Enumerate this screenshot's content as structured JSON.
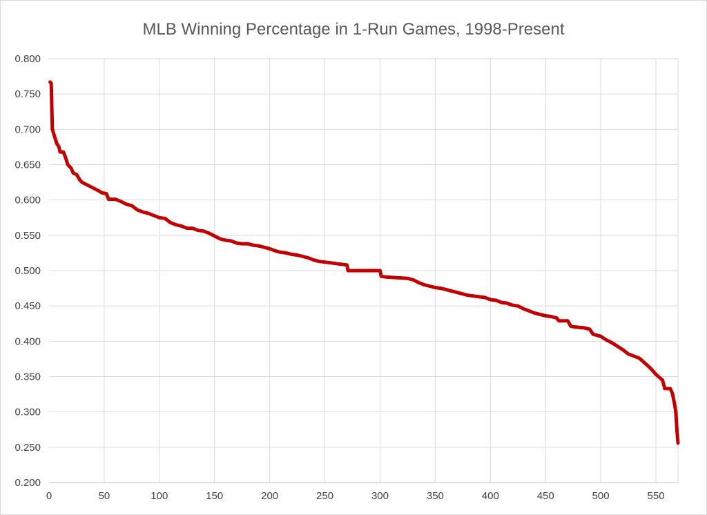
{
  "chart_data": {
    "type": "line",
    "title": "MLB Winning Percentage in 1-Run Games, 1998-Present",
    "xlabel": "",
    "ylabel": "",
    "xlim": [
      0,
      570
    ],
    "ylim": [
      0.2,
      0.8
    ],
    "x_ticks": [
      0,
      50,
      100,
      150,
      200,
      250,
      300,
      350,
      400,
      450,
      500,
      550
    ],
    "x_tick_labels": [
      "0",
      "50",
      "100",
      "150",
      "200",
      "250",
      "300",
      "350",
      "400",
      "450",
      "500",
      "550"
    ],
    "y_ticks": [
      0.2,
      0.25,
      0.3,
      0.35,
      0.4,
      0.45,
      0.5,
      0.55,
      0.6,
      0.65,
      0.7,
      0.75,
      0.8
    ],
    "y_tick_labels": [
      "0.200",
      "0.250",
      "0.300",
      "0.350",
      "0.400",
      "0.450",
      "0.500",
      "0.550",
      "0.600",
      "0.650",
      "0.700",
      "0.750",
      "0.800"
    ],
    "grid": true,
    "legend": "none",
    "series": [
      {
        "color": "#c00000",
        "points": [
          [
            1,
            0.767
          ],
          [
            2,
            0.765
          ],
          [
            3,
            0.7
          ],
          [
            5,
            0.69
          ],
          [
            7,
            0.68
          ],
          [
            9,
            0.675
          ],
          [
            10,
            0.668
          ],
          [
            13,
            0.668
          ],
          [
            15,
            0.66
          ],
          [
            17,
            0.65
          ],
          [
            20,
            0.645
          ],
          [
            22,
            0.638
          ],
          [
            25,
            0.636
          ],
          [
            28,
            0.628
          ],
          [
            30,
            0.625
          ],
          [
            35,
            0.621
          ],
          [
            40,
            0.617
          ],
          [
            45,
            0.613
          ],
          [
            48,
            0.61
          ],
          [
            52,
            0.609
          ],
          [
            54,
            0.601
          ],
          [
            60,
            0.601
          ],
          [
            65,
            0.598
          ],
          [
            70,
            0.594
          ],
          [
            75,
            0.592
          ],
          [
            80,
            0.586
          ],
          [
            85,
            0.583
          ],
          [
            90,
            0.581
          ],
          [
            95,
            0.578
          ],
          [
            100,
            0.575
          ],
          [
            105,
            0.574
          ],
          [
            110,
            0.568
          ],
          [
            115,
            0.565
          ],
          [
            120,
            0.563
          ],
          [
            125,
            0.56
          ],
          [
            130,
            0.56
          ],
          [
            135,
            0.557
          ],
          [
            140,
            0.556
          ],
          [
            145,
            0.553
          ],
          [
            150,
            0.549
          ],
          [
            155,
            0.545
          ],
          [
            160,
            0.543
          ],
          [
            165,
            0.542
          ],
          [
            170,
            0.539
          ],
          [
            175,
            0.538
          ],
          [
            180,
            0.538
          ],
          [
            185,
            0.536
          ],
          [
            190,
            0.535
          ],
          [
            195,
            0.533
          ],
          [
            200,
            0.531
          ],
          [
            205,
            0.528
          ],
          [
            210,
            0.526
          ],
          [
            215,
            0.525
          ],
          [
            220,
            0.523
          ],
          [
            225,
            0.522
          ],
          [
            230,
            0.52
          ],
          [
            235,
            0.518
          ],
          [
            240,
            0.515
          ],
          [
            245,
            0.513
          ],
          [
            250,
            0.512
          ],
          [
            255,
            0.511
          ],
          [
            260,
            0.51
          ],
          [
            265,
            0.509
          ],
          [
            270,
            0.508
          ],
          [
            271,
            0.5
          ],
          [
            280,
            0.5
          ],
          [
            290,
            0.5
          ],
          [
            300,
            0.5
          ],
          [
            301,
            0.492
          ],
          [
            305,
            0.491
          ],
          [
            315,
            0.49
          ],
          [
            325,
            0.489
          ],
          [
            330,
            0.487
          ],
          [
            335,
            0.483
          ],
          [
            340,
            0.48
          ],
          [
            345,
            0.478
          ],
          [
            350,
            0.476
          ],
          [
            355,
            0.475
          ],
          [
            360,
            0.473
          ],
          [
            365,
            0.471
          ],
          [
            370,
            0.469
          ],
          [
            375,
            0.467
          ],
          [
            380,
            0.465
          ],
          [
            385,
            0.464
          ],
          [
            390,
            0.463
          ],
          [
            395,
            0.462
          ],
          [
            400,
            0.459
          ],
          [
            405,
            0.458
          ],
          [
            410,
            0.455
          ],
          [
            415,
            0.454
          ],
          [
            420,
            0.451
          ],
          [
            425,
            0.45
          ],
          [
            430,
            0.446
          ],
          [
            435,
            0.443
          ],
          [
            440,
            0.44
          ],
          [
            445,
            0.438
          ],
          [
            450,
            0.436
          ],
          [
            455,
            0.435
          ],
          [
            460,
            0.433
          ],
          [
            462,
            0.429
          ],
          [
            470,
            0.429
          ],
          [
            473,
            0.421
          ],
          [
            478,
            0.42
          ],
          [
            485,
            0.419
          ],
          [
            490,
            0.417
          ],
          [
            493,
            0.41
          ],
          [
            500,
            0.407
          ],
          [
            505,
            0.402
          ],
          [
            510,
            0.398
          ],
          [
            515,
            0.393
          ],
          [
            520,
            0.388
          ],
          [
            525,
            0.382
          ],
          [
            530,
            0.379
          ],
          [
            535,
            0.376
          ],
          [
            540,
            0.369
          ],
          [
            545,
            0.362
          ],
          [
            550,
            0.353
          ],
          [
            553,
            0.349
          ],
          [
            556,
            0.345
          ],
          [
            558,
            0.333
          ],
          [
            563,
            0.333
          ],
          [
            565,
            0.326
          ],
          [
            567,
            0.31
          ],
          [
            568,
            0.3
          ],
          [
            569,
            0.275
          ],
          [
            570,
            0.256
          ]
        ]
      }
    ]
  }
}
